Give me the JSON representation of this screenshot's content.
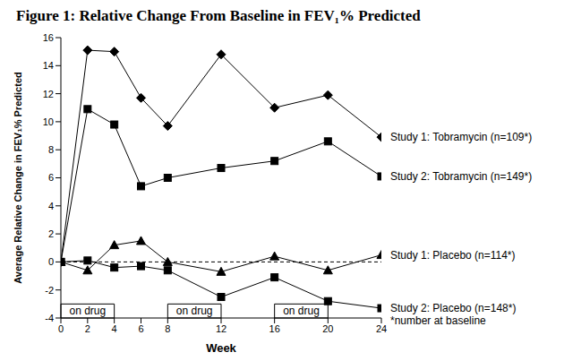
{
  "chart_data": {
    "type": "line",
    "title": "Figure 1: Relative Change From Baseline in FEV₁% Predicted",
    "x_label": "Week",
    "y_label": "Average Relative Change in FEV₁% Predicted",
    "x": [
      0,
      2,
      4,
      6,
      8,
      12,
      16,
      20,
      24
    ],
    "xlim": [
      0,
      24
    ],
    "xticks": [
      0,
      2,
      4,
      6,
      8,
      12,
      16,
      20,
      24
    ],
    "ylim": [
      -4,
      16
    ],
    "yticks": [
      -4,
      -2,
      0,
      2,
      4,
      6,
      8,
      10,
      12,
      14,
      16
    ],
    "grid": false,
    "baseline": 0,
    "series": [
      {
        "name": "Study 1: Tobramycin (n=109*)",
        "color": "#000000",
        "marker": "diamond",
        "values": [
          0,
          15.1,
          15,
          11.7,
          9.7,
          14.8,
          11,
          11.9,
          8.9
        ]
      },
      {
        "name": "Study 2: Tobramycin (n=149*)",
        "color": "#000000",
        "marker": "square",
        "values": [
          0,
          10.9,
          9.8,
          5.4,
          6,
          6.7,
          7.2,
          8.6,
          6.1
        ]
      },
      {
        "name": "Study 1: Placebo (n=114*)",
        "color": "#000000",
        "marker": "triangle",
        "values": [
          0,
          -0.6,
          1.2,
          1.5,
          0,
          -0.7,
          0.4,
          -0.6,
          0.5
        ]
      },
      {
        "name": "Study 2: Placebo (n=148*)",
        "color": "#000000",
        "marker": "square",
        "values": [
          0,
          0.1,
          -0.4,
          -0.3,
          -0.6,
          -2.5,
          -1.1,
          -2.8,
          -3.3
        ]
      }
    ],
    "annotations": [
      {
        "text": "on drug",
        "x": [
          0,
          4
        ]
      },
      {
        "text": "on drug",
        "x": [
          8,
          12
        ]
      },
      {
        "text": "on drug",
        "x": [
          16,
          20
        ]
      }
    ],
    "note": "*number at baseline"
  }
}
